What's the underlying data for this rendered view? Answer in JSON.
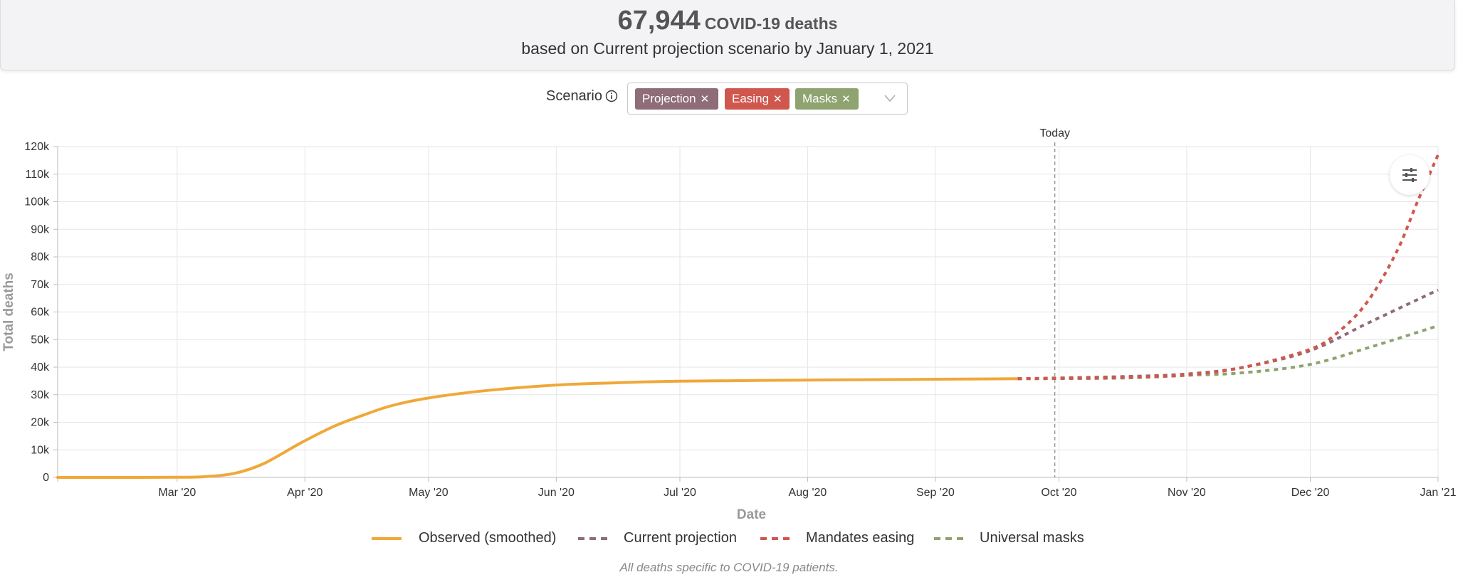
{
  "summary": {
    "count": "67,944",
    "unit": "COVID-19 deaths",
    "subtitle": "based on Current projection scenario by January 1, 2021"
  },
  "scenario": {
    "label": "Scenario",
    "tags": [
      {
        "label": "Projection",
        "color": "#8e6c78"
      },
      {
        "label": "Easing",
        "color": "#d0574e"
      },
      {
        "label": "Masks",
        "color": "#8ea36f"
      }
    ],
    "remove_glyph": "✕"
  },
  "chart_data": {
    "type": "line",
    "ylabel": "Total deaths",
    "xlabel": "Date",
    "today_label": "Today",
    "today_date": "2020-09-30",
    "xlim": [
      "2020-02-01",
      "2021-01-01"
    ],
    "ylim": [
      0,
      120000
    ],
    "y_ticks": [
      0,
      10000,
      20000,
      30000,
      40000,
      50000,
      60000,
      70000,
      80000,
      90000,
      100000,
      110000,
      120000
    ],
    "y_tick_labels": [
      "0",
      "10k",
      "20k",
      "30k",
      "40k",
      "50k",
      "60k",
      "70k",
      "80k",
      "90k",
      "100k",
      "110k",
      "120k"
    ],
    "x_ticks": [
      {
        "date": "2020-03-01",
        "label": "Mar '20"
      },
      {
        "date": "2020-04-01",
        "label": "Apr '20"
      },
      {
        "date": "2020-05-01",
        "label": "May '20"
      },
      {
        "date": "2020-06-01",
        "label": "Jun '20"
      },
      {
        "date": "2020-07-01",
        "label": "Jul '20"
      },
      {
        "date": "2020-08-01",
        "label": "Aug '20"
      },
      {
        "date": "2020-09-01",
        "label": "Sep '20"
      },
      {
        "date": "2020-10-01",
        "label": "Oct '20"
      },
      {
        "date": "2020-11-01",
        "label": "Nov '20"
      },
      {
        "date": "2020-12-01",
        "label": "Dec '20"
      },
      {
        "date": "2021-01-01",
        "label": "Jan '21"
      }
    ],
    "grid": true,
    "legend_position": "bottom",
    "series": [
      {
        "name": "Observed (smoothed)",
        "color": "#f0a83a",
        "dashed": false,
        "points": [
          [
            "2020-02-01",
            0
          ],
          [
            "2020-02-15",
            0
          ],
          [
            "2020-03-01",
            50
          ],
          [
            "2020-03-08",
            300
          ],
          [
            "2020-03-15",
            1500
          ],
          [
            "2020-03-22",
            5000
          ],
          [
            "2020-03-31",
            12500
          ],
          [
            "2020-04-08",
            18500
          ],
          [
            "2020-04-15",
            22500
          ],
          [
            "2020-04-22",
            26000
          ],
          [
            "2020-05-01",
            28800
          ],
          [
            "2020-05-15",
            31500
          ],
          [
            "2020-06-01",
            33500
          ],
          [
            "2020-06-15",
            34300
          ],
          [
            "2020-07-01",
            34900
          ],
          [
            "2020-08-01",
            35300
          ],
          [
            "2020-09-01",
            35600
          ],
          [
            "2020-09-21",
            35800
          ]
        ]
      },
      {
        "name": "Current projection",
        "color": "#8e6c78",
        "dashed": true,
        "points": [
          [
            "2020-09-21",
            35800
          ],
          [
            "2020-10-15",
            36500
          ],
          [
            "2020-11-01",
            37500
          ],
          [
            "2020-11-15",
            40000
          ],
          [
            "2020-12-01",
            46000
          ],
          [
            "2020-12-15",
            56000
          ],
          [
            "2021-01-01",
            68000
          ]
        ]
      },
      {
        "name": "Mandates easing",
        "color": "#d0574e",
        "dashed": true,
        "points": [
          [
            "2020-09-21",
            35800
          ],
          [
            "2020-10-15",
            36200
          ],
          [
            "2020-11-01",
            37200
          ],
          [
            "2020-11-15",
            40000
          ],
          [
            "2020-12-01",
            46500
          ],
          [
            "2020-12-08",
            53000
          ],
          [
            "2020-12-15",
            64000
          ],
          [
            "2020-12-22",
            82000
          ],
          [
            "2020-12-27",
            100000
          ],
          [
            "2021-01-01",
            117000
          ]
        ]
      },
      {
        "name": "Universal masks",
        "color": "#8ea36f",
        "dashed": true,
        "points": [
          [
            "2020-09-21",
            35800
          ],
          [
            "2020-10-15",
            36000
          ],
          [
            "2020-11-01",
            37000
          ],
          [
            "2020-11-15",
            38000
          ],
          [
            "2020-12-01",
            41000
          ],
          [
            "2020-12-15",
            47000
          ],
          [
            "2021-01-01",
            55000
          ]
        ]
      }
    ]
  },
  "footnote": "All deaths specific to COVID-19 patients.",
  "icons": {
    "info": "info-icon",
    "dropdown": "chevron-down-icon",
    "settings": "sliders-icon"
  }
}
